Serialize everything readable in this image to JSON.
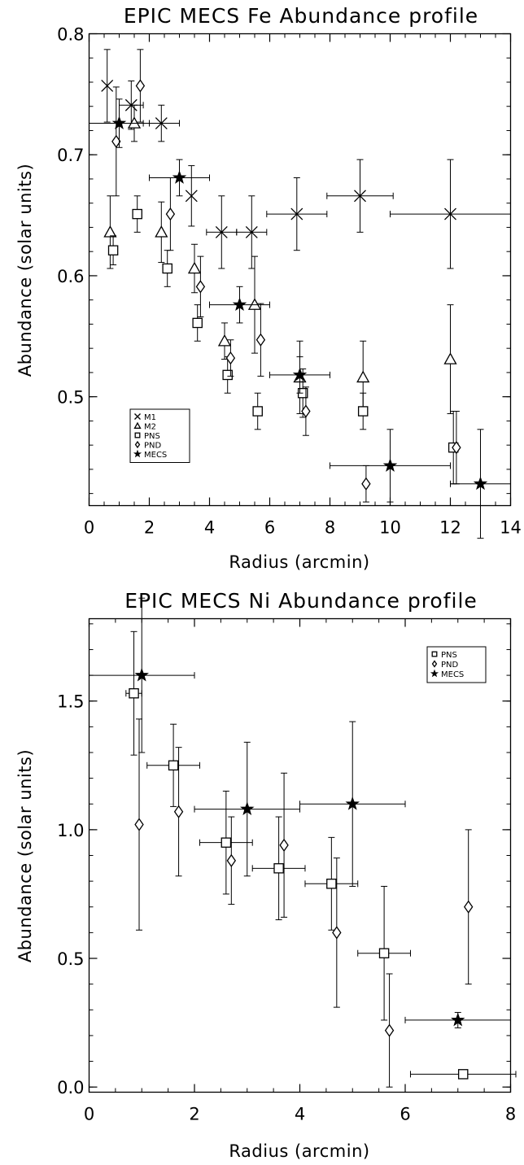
{
  "chart_data": [
    {
      "type": "scatter",
      "title": "EPIC MECS Fe Abundance profile",
      "xlabel": "Radius (arcmin)",
      "ylabel": "Abundance (solar units)",
      "xlim": [
        0,
        14
      ],
      "ylim": [
        0.41,
        0.8
      ],
      "xticks": [
        0,
        2,
        4,
        6,
        8,
        10,
        12,
        14
      ],
      "yticks": [
        0.5,
        0.6,
        0.7,
        0.8
      ],
      "ytick_labels": [
        "0.5",
        "0.6",
        "0.7",
        "0.8"
      ],
      "legend_position": "bottom-left",
      "series": [
        {
          "name": "M1",
          "marker": "x",
          "points": [
            {
              "x": 0.6,
              "y": 0.757,
              "yerr": 0.03,
              "xerr": 0
            },
            {
              "x": 1.4,
              "y": 0.741,
              "yerr": 0.02,
              "xerr": 0.4
            },
            {
              "x": 2.4,
              "y": 0.726,
              "yerr": 0.015,
              "xerr": 0.6
            },
            {
              "x": 3.4,
              "y": 0.666,
              "yerr": 0.025,
              "xerr": 0
            },
            {
              "x": 4.4,
              "y": 0.636,
              "yerr": 0.03,
              "xerr": 0.5
            },
            {
              "x": 5.4,
              "y": 0.636,
              "yerr": 0.03,
              "xerr": 0.5
            },
            {
              "x": 6.9,
              "y": 0.651,
              "yerr": 0.03,
              "xerr": 1.0
            },
            {
              "x": 9.0,
              "y": 0.666,
              "yerr": 0.03,
              "xerr": 1.1
            },
            {
              "x": 12.0,
              "y": 0.651,
              "yerr": 0.045,
              "xerr": 2.0
            }
          ]
        },
        {
          "name": "M2",
          "marker": "triangle",
          "points": [
            {
              "x": 0.7,
              "y": 0.636,
              "yerr": 0.03,
              "xerr": 0
            },
            {
              "x": 1.5,
              "y": 0.726,
              "yerr": 0.015,
              "xerr": 0
            },
            {
              "x": 2.4,
              "y": 0.636,
              "yerr": 0.025,
              "xerr": 0
            },
            {
              "x": 3.5,
              "y": 0.606,
              "yerr": 0.02,
              "xerr": 0
            },
            {
              "x": 4.5,
              "y": 0.546,
              "yerr": 0.015,
              "xerr": 0
            },
            {
              "x": 5.5,
              "y": 0.576,
              "yerr": 0.04,
              "xerr": 0
            },
            {
              "x": 7.0,
              "y": 0.516,
              "yerr": 0.03,
              "xerr": 0
            },
            {
              "x": 9.1,
              "y": 0.516,
              "yerr": 0.03,
              "xerr": 0
            },
            {
              "x": 12.0,
              "y": 0.531,
              "yerr": 0.045,
              "xerr": 0
            }
          ]
        },
        {
          "name": "PNS",
          "marker": "square",
          "points": [
            {
              "x": 0.8,
              "y": 0.621,
              "yerr": 0.012,
              "xerr": 0
            },
            {
              "x": 1.6,
              "y": 0.651,
              "yerr": 0.015,
              "xerr": 0
            },
            {
              "x": 2.6,
              "y": 0.606,
              "yerr": 0.015,
              "xerr": 0
            },
            {
              "x": 3.6,
              "y": 0.561,
              "yerr": 0.015,
              "xerr": 0
            },
            {
              "x": 4.6,
              "y": 0.518,
              "yerr": 0.015,
              "xerr": 0
            },
            {
              "x": 5.6,
              "y": 0.488,
              "yerr": 0.015,
              "xerr": 0
            },
            {
              "x": 7.1,
              "y": 0.503,
              "yerr": 0.02,
              "xerr": 0
            },
            {
              "x": 9.1,
              "y": 0.488,
              "yerr": 0.015,
              "xerr": 0
            },
            {
              "x": 12.1,
              "y": 0.458,
              "yerr": 0.03,
              "xerr": 0
            }
          ]
        },
        {
          "name": "PND",
          "marker": "diamond",
          "points": [
            {
              "x": 0.9,
              "y": 0.711,
              "yerr": 0.045,
              "xerr": 0
            },
            {
              "x": 1.7,
              "y": 0.757,
              "yerr": 0.03,
              "xerr": 0
            },
            {
              "x": 2.7,
              "y": 0.651,
              "yerr": 0.03,
              "xerr": 0
            },
            {
              "x": 3.7,
              "y": 0.591,
              "yerr": 0.025,
              "xerr": 0
            },
            {
              "x": 4.7,
              "y": 0.532,
              "yerr": 0.015,
              "xerr": 0
            },
            {
              "x": 5.7,
              "y": 0.547,
              "yerr": 0.03,
              "xerr": 0
            },
            {
              "x": 7.2,
              "y": 0.488,
              "yerr": 0.02,
              "xerr": 0
            },
            {
              "x": 9.2,
              "y": 0.428,
              "yerr": 0.015,
              "xerr": 0
            },
            {
              "x": 12.2,
              "y": 0.458,
              "yerr": 0.03,
              "xerr": 0
            }
          ]
        },
        {
          "name": "MECS",
          "marker": "star",
          "points": [
            {
              "x": 1.0,
              "y": 0.726,
              "yerr": 0.02,
              "xerr": 1.0
            },
            {
              "x": 3.0,
              "y": 0.681,
              "yerr": 0.015,
              "xerr": 1.0
            },
            {
              "x": 5.0,
              "y": 0.576,
              "yerr": 0.015,
              "xerr": 1.0
            },
            {
              "x": 7.0,
              "y": 0.518,
              "yerr": 0.015,
              "xerr": 1.0
            },
            {
              "x": 10.0,
              "y": 0.443,
              "yerr": 0.03,
              "xerr": 2.0
            },
            {
              "x": 13.0,
              "y": 0.428,
              "yerr": 0.045,
              "xerr": 1.0
            }
          ]
        }
      ]
    },
    {
      "type": "scatter",
      "title": "EPIC MECS Ni Abundance profile",
      "xlabel": "Radius (arcmin)",
      "ylabel": "Abundance (solar units)",
      "xlim": [
        0,
        8
      ],
      "ylim": [
        -0.02,
        1.82
      ],
      "xticks": [
        0,
        2,
        4,
        6,
        8
      ],
      "yticks": [
        0.0,
        0.5,
        1.0,
        1.5
      ],
      "ytick_labels": [
        "0.0",
        "0.5",
        "1.0",
        "1.5"
      ],
      "legend_position": "top-right",
      "series": [
        {
          "name": "PNS",
          "marker": "square",
          "points": [
            {
              "x": 0.85,
              "y": 1.53,
              "yerr": 0.24,
              "xerr": 0.15
            },
            {
              "x": 1.6,
              "y": 1.25,
              "yerr": 0.16,
              "xerr": 0.5
            },
            {
              "x": 2.6,
              "y": 0.95,
              "yerr": 0.2,
              "xerr": 0.5
            },
            {
              "x": 3.6,
              "y": 0.85,
              "yerr": 0.2,
              "xerr": 0.5
            },
            {
              "x": 4.6,
              "y": 0.79,
              "yerr": 0.18,
              "xerr": 0.5
            },
            {
              "x": 5.6,
              "y": 0.52,
              "yerr": 0.26,
              "xerr": 0.5
            },
            {
              "x": 7.1,
              "y": 0.05,
              "yerr": 0.0,
              "xerr": 1.0
            }
          ]
        },
        {
          "name": "PND",
          "marker": "diamond",
          "points": [
            {
              "x": 0.95,
              "y": 1.02,
              "yerr": 0.41,
              "xerr": 0
            },
            {
              "x": 1.7,
              "y": 1.07,
              "yerr": 0.25,
              "xerr": 0
            },
            {
              "x": 2.7,
              "y": 0.88,
              "yerr": 0.17,
              "xerr": 0
            },
            {
              "x": 3.7,
              "y": 0.94,
              "yerr": 0.28,
              "xerr": 0
            },
            {
              "x": 4.7,
              "y": 0.6,
              "yerr": 0.29,
              "xerr": 0
            },
            {
              "x": 5.7,
              "y": 0.22,
              "yerr": 0.22,
              "xerr": 0
            },
            {
              "x": 7.2,
              "y": 0.7,
              "yerr": 0.3,
              "xerr": 0
            }
          ]
        },
        {
          "name": "MECS",
          "marker": "star",
          "points": [
            {
              "x": 1.0,
              "y": 1.6,
              "yerr": 0.3,
              "xerr": 1.0
            },
            {
              "x": 3.0,
              "y": 1.08,
              "yerr": 0.26,
              "xerr": 1.0
            },
            {
              "x": 5.0,
              "y": 1.1,
              "yerr": 0.32,
              "xerr": 1.0
            },
            {
              "x": 7.0,
              "y": 0.26,
              "yerr": 0.03,
              "xerr": 1.0
            }
          ]
        }
      ]
    }
  ]
}
